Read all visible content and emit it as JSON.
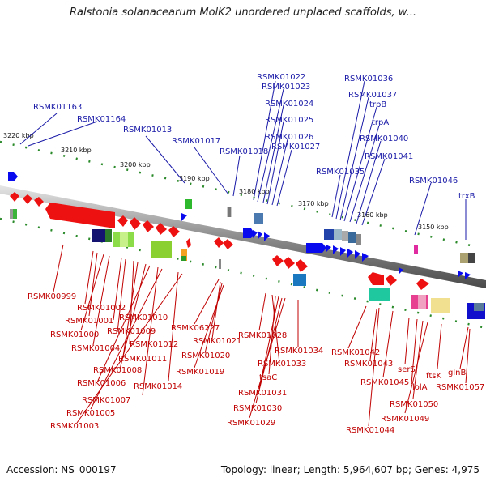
{
  "title": "Ralstonia solanacearum MolK2 unordered unplaced scaffolds, w...",
  "footer": {
    "accession": "Accession: NS_000197",
    "stats": "Topology: linear; Length: 5,964,607 bp; Genes: 4,975"
  },
  "scale_labels": [
    "3220 kbp",
    "3210 kbp",
    "3200 kbp",
    "3190 kbp",
    "3180 kbp",
    "3170 kbp",
    "3160 kbp",
    "3150 kbp"
  ],
  "plus_strand_genes": [
    "RSMK01163",
    "RSMK01164",
    "RSMK01013",
    "RSMK01017",
    "RSMK01018",
    "RSMK01022",
    "RSMK01023",
    "RSMK01024",
    "RSMK01025",
    "RSMK01026",
    "RSMK01027",
    "RSMK01035",
    "RSMK01036",
    "RSMK01037",
    "trpB",
    "trpA",
    "RSMK01040",
    "RSMK01041",
    "RSMK01046",
    "trxB"
  ],
  "minus_strand_genes": [
    "RSMK00999",
    "RSMK01002",
    "RSMK01001",
    "RSMK01000",
    "RSMK01004",
    "RSMK01010",
    "RSMK01009",
    "RSMK01012",
    "RSMK01011",
    "RSMK01008",
    "RSMK01006",
    "RSMK01014",
    "RSMK01007",
    "RSMK01005",
    "RSMK01003",
    "RSMK06227",
    "RSMK01021",
    "RSMK01020",
    "RSMK01019",
    "RSMK01028",
    "RSMK01034",
    "RSMK01033",
    "tsaC",
    "RSMK01031",
    "RSMK01030",
    "RSMK01029",
    "RSMK01042",
    "RSMK01043",
    "RSMK01045",
    "serS",
    "lolA",
    "ftsK",
    "glnB",
    "RSMK01057",
    "RSMK01050",
    "RSMK01049",
    "RSMK01044"
  ]
}
